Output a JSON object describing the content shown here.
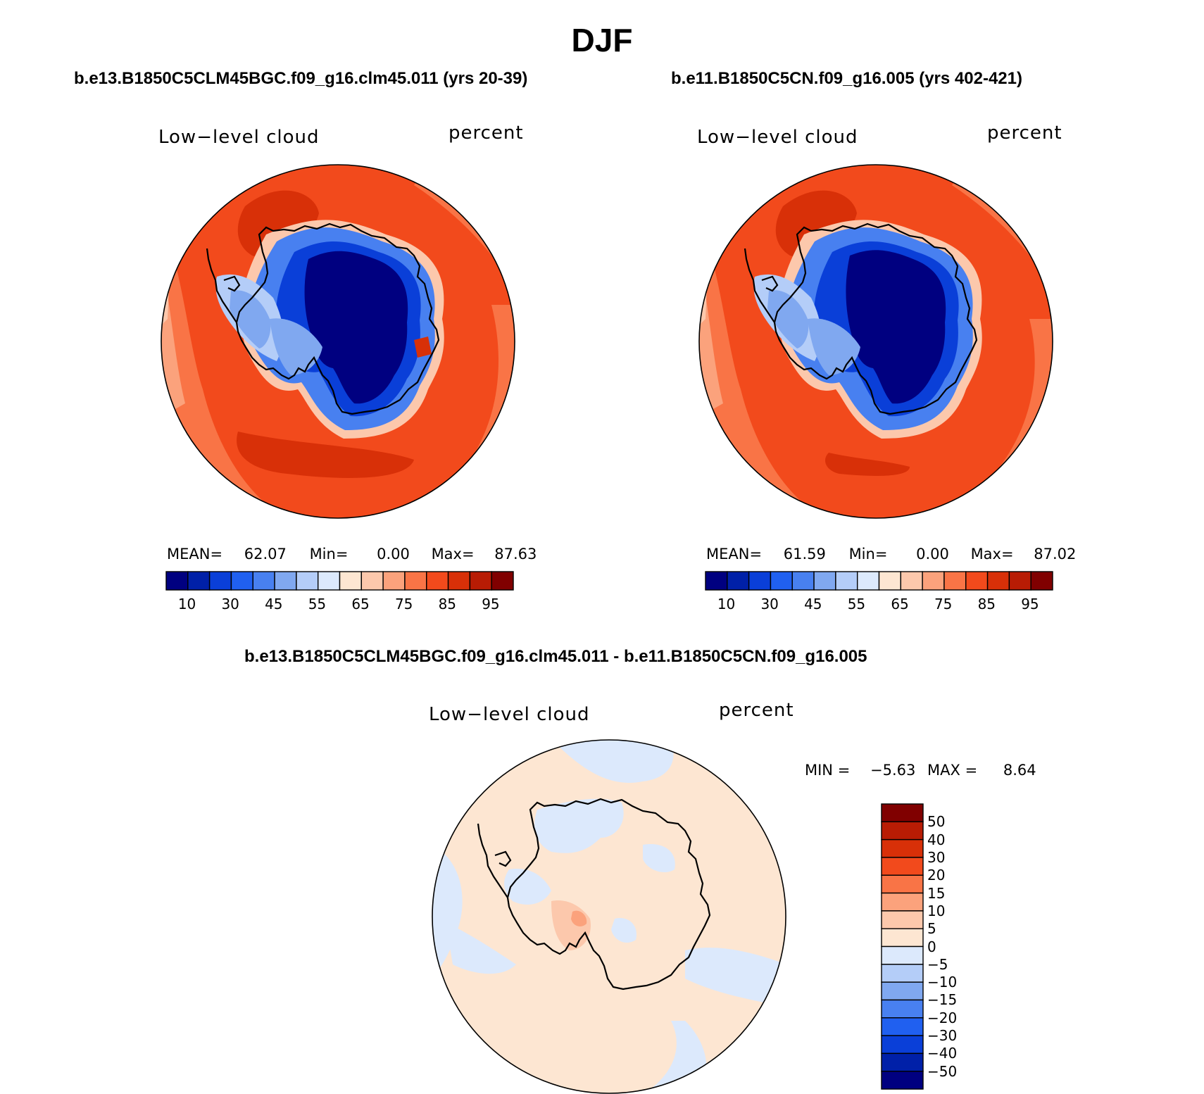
{
  "title": "DJF",
  "panels": [
    {
      "case": "b.e13.B1850C5CLM45BGC.f09_g16.clm45.011 (yrs 20-39)",
      "variable": "Low−level cloud",
      "units": "percent",
      "stats": {
        "mean_label": "MEAN=",
        "mean": "62.07",
        "min_label": "Min=",
        "min": "0.00",
        "max_label": "Max=",
        "max": "87.63"
      }
    },
    {
      "case": "b.e11.B1850C5CN.f09_g16.005 (yrs 402-421)",
      "variable": "Low−level cloud",
      "units": "percent",
      "stats": {
        "mean_label": "MEAN=",
        "mean": "61.59",
        "min_label": "Min=",
        "min": "0.00",
        "max_label": "Max=",
        "max": "87.02"
      }
    }
  ],
  "abs_colorbar": {
    "colors": [
      "#000080",
      "#0020a8",
      "#0a3fd8",
      "#2060f0",
      "#4880f0",
      "#80a8f0",
      "#b4cdf8",
      "#dce9fc",
      "#fde6d2",
      "#fcc8ac",
      "#fba27c",
      "#f97446",
      "#f24a1c",
      "#d83008",
      "#b81c04",
      "#800000"
    ],
    "labels": [
      "10",
      "30",
      "45",
      "55",
      "65",
      "75",
      "85",
      "95"
    ]
  },
  "diff_panel": {
    "title": "b.e13.B1850C5CLM45BGC.f09_g16.clm45.011 - b.e11.B1850C5CN.f09_g16.005",
    "variable": "Low−level cloud",
    "units": "percent",
    "stats": {
      "min_label": "MIN =",
      "min": "−5.63",
      "max_label": "MAX =",
      "max": "8.64"
    }
  },
  "diff_colorbar": {
    "colors": [
      "#800000",
      "#b81c04",
      "#d83008",
      "#f24a1c",
      "#f97446",
      "#fba27c",
      "#fcc8ac",
      "#fde6d2",
      "#dce9fc",
      "#b4cdf8",
      "#80a8f0",
      "#4880f0",
      "#2060f0",
      "#0a3fd8",
      "#0020a8",
      "#000080"
    ],
    "labels": [
      "50",
      "40",
      "30",
      "20",
      "15",
      "10",
      "5",
      "0",
      "−5",
      "−10",
      "−15",
      "−20",
      "−30",
      "−40",
      "−50"
    ]
  }
}
